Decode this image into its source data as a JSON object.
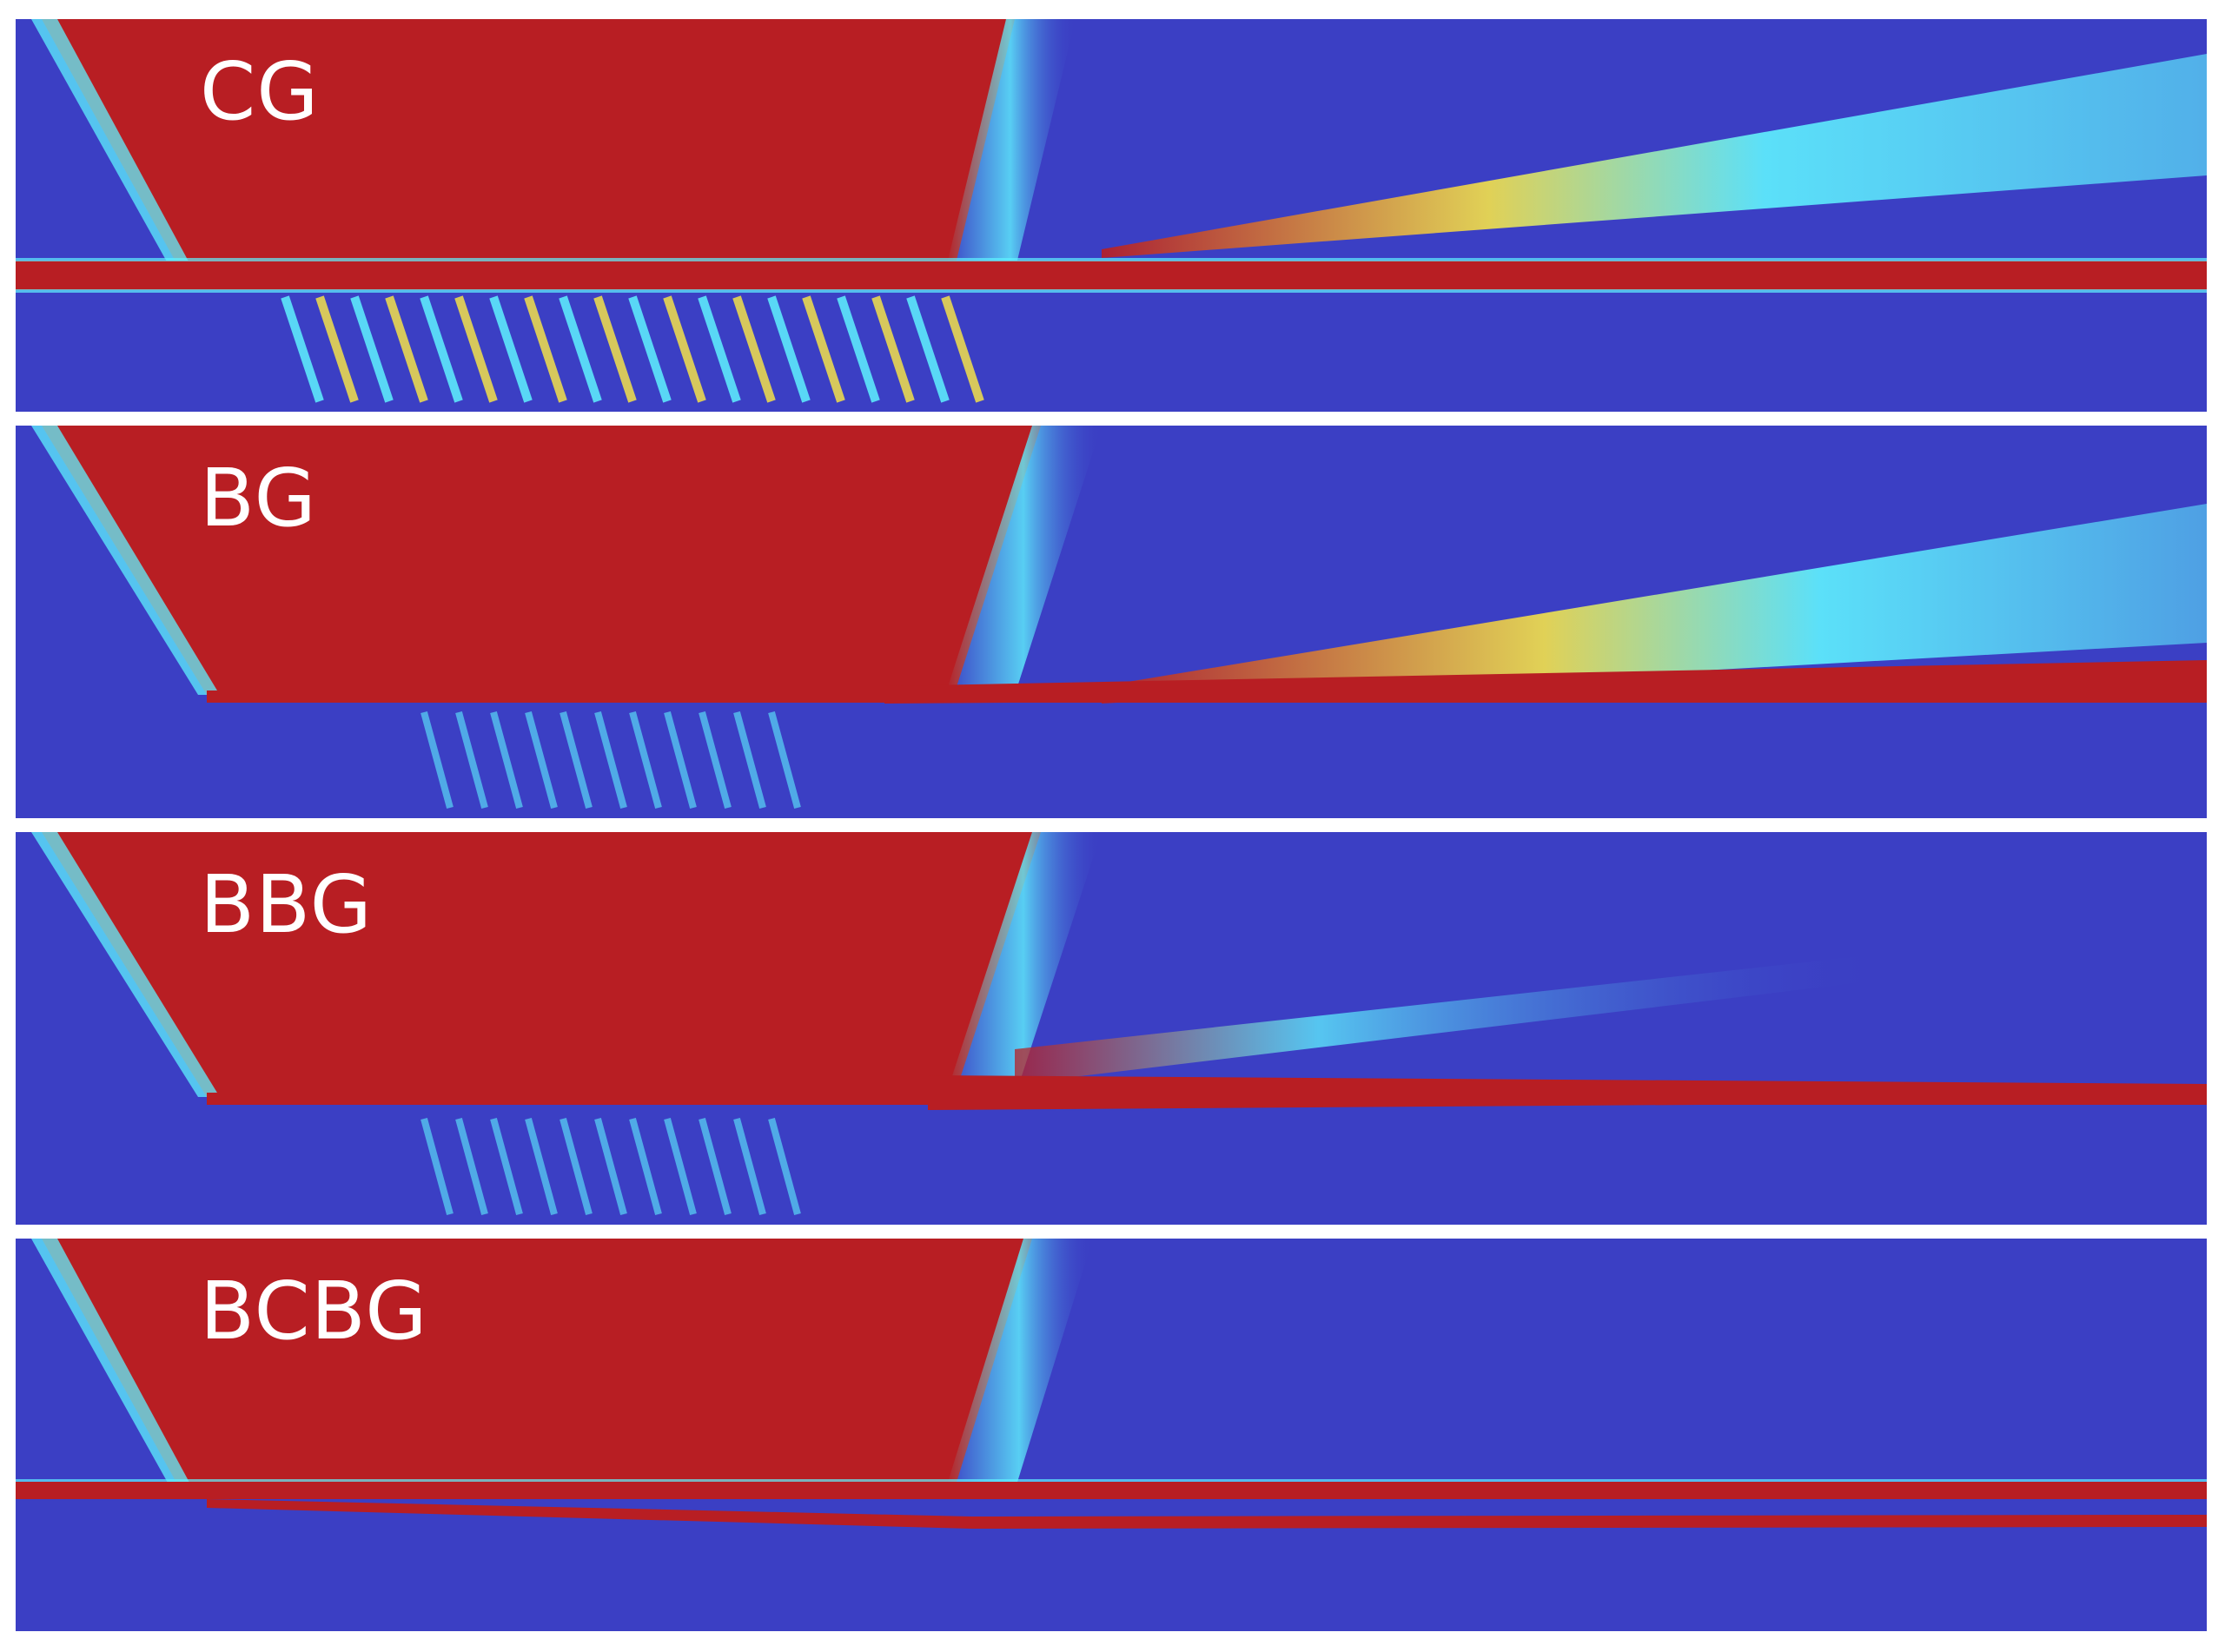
{
  "panels": [
    {
      "label": "CG"
    },
    {
      "label": "BG"
    },
    {
      "label": "BBG"
    },
    {
      "label": "BCBG"
    }
  ],
  "colors": {
    "background": "#3b3fc4",
    "field": "#b81e23",
    "cyan": "#5ff2ff",
    "yellow": "#f3e14a",
    "separator": "#ffffff"
  }
}
